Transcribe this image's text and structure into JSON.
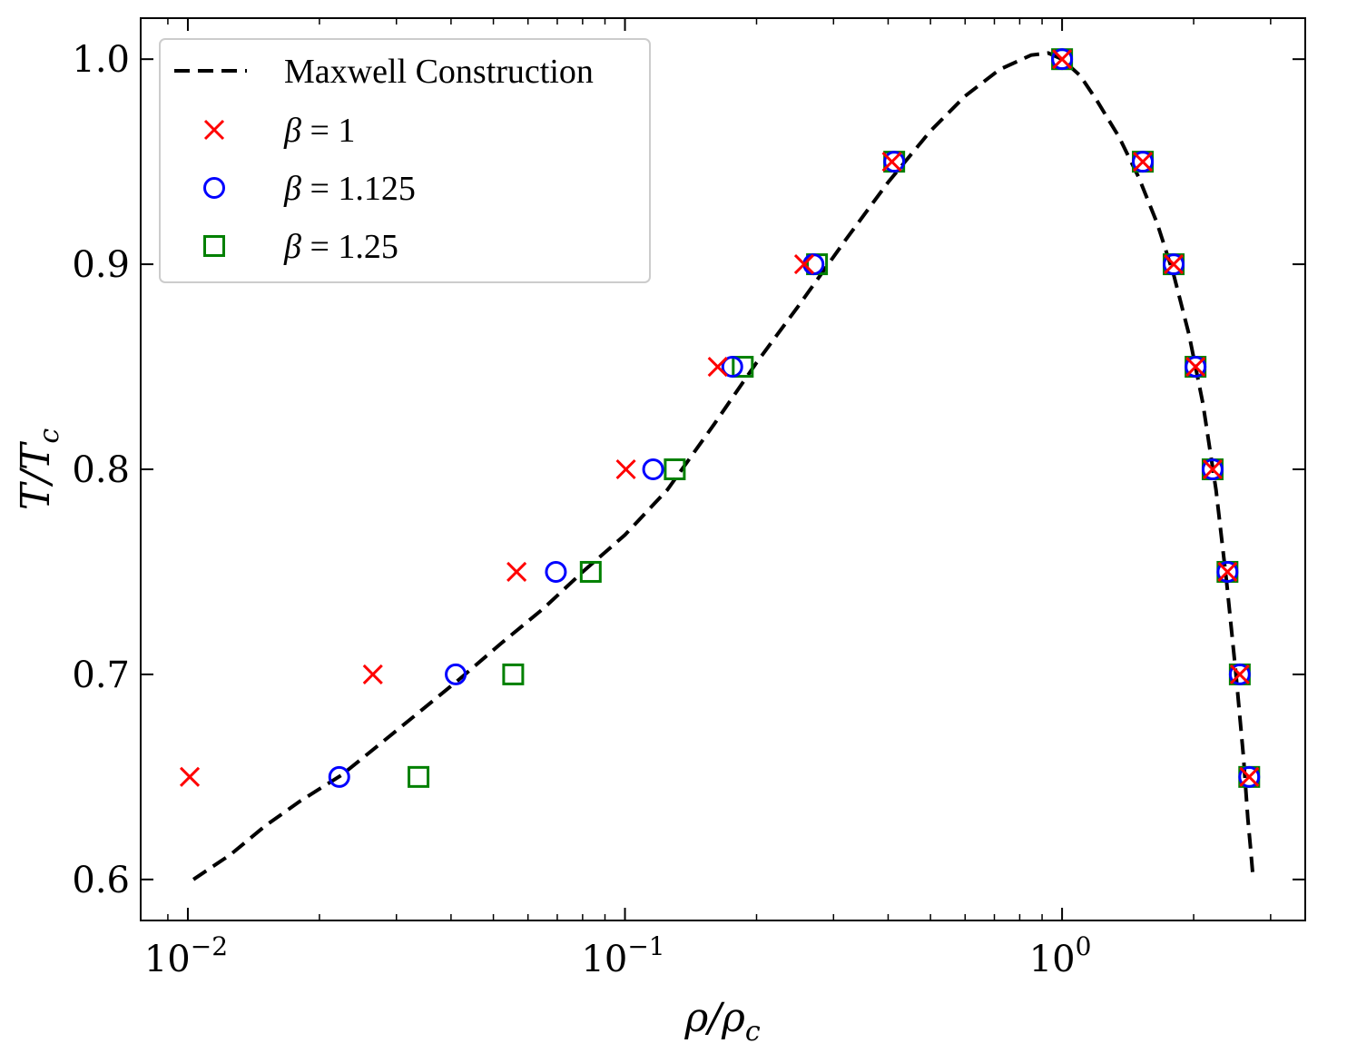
{
  "chart_data": {
    "type": "scatter",
    "x_scale": "log",
    "xlabel": "ρ/ρc",
    "ylabel": "T/Tc",
    "xlim": [
      0.0078,
      3.6
    ],
    "ylim": [
      0.58,
      1.02
    ],
    "x_ticks": [
      {
        "value": 0.01,
        "base": "10",
        "exp": "−2"
      },
      {
        "value": 0.1,
        "base": "10",
        "exp": "−1"
      },
      {
        "value": 1,
        "base": "10",
        "exp": "0"
      }
    ],
    "y_ticks": [
      {
        "value": 0.6,
        "label": "0.6"
      },
      {
        "value": 0.7,
        "label": "0.7"
      },
      {
        "value": 0.8,
        "label": "0.8"
      },
      {
        "value": 0.9,
        "label": "0.9"
      },
      {
        "value": 1.0,
        "label": "1.0"
      }
    ],
    "legend_position": "top-left",
    "line_series": {
      "name": "Maxwell Construction",
      "color": "#000000",
      "style": "dashed",
      "x": [
        0.0103,
        0.0125,
        0.015,
        0.018,
        0.0225,
        0.0275,
        0.034,
        0.042,
        0.052,
        0.065,
        0.08,
        0.1,
        0.125,
        0.16,
        0.2,
        0.25,
        0.32,
        0.4,
        0.5,
        0.6,
        0.72,
        0.85,
        0.93,
        1.0,
        1.1,
        1.2,
        1.35,
        1.5,
        1.65,
        1.8,
        1.95,
        2.1,
        2.25,
        2.38,
        2.5,
        2.6,
        2.66,
        2.7,
        2.73
      ],
      "y": [
        0.6,
        0.612,
        0.626,
        0.638,
        0.651,
        0.666,
        0.682,
        0.698,
        0.715,
        0.732,
        0.75,
        0.768,
        0.79,
        0.822,
        0.852,
        0.88,
        0.912,
        0.94,
        0.965,
        0.982,
        0.995,
        1.002,
        1.003,
        1.0,
        0.992,
        0.98,
        0.962,
        0.942,
        0.92,
        0.895,
        0.866,
        0.832,
        0.79,
        0.745,
        0.7,
        0.66,
        0.63,
        0.615,
        0.603
      ]
    },
    "series": [
      {
        "name": "β = 1",
        "marker": "x",
        "color": "#ff0000",
        "points": [
          [
            0.0101,
            0.65
          ],
          [
            0.0265,
            0.7
          ],
          [
            0.0565,
            0.75
          ],
          [
            0.1005,
            0.8
          ],
          [
            0.163,
            0.85
          ],
          [
            0.257,
            0.9
          ],
          [
            0.408,
            0.95
          ],
          [
            1.0,
            1.0
          ],
          [
            1.53,
            0.95
          ],
          [
            1.8,
            0.9
          ],
          [
            2.02,
            0.85
          ],
          [
            2.21,
            0.8
          ],
          [
            2.39,
            0.75
          ],
          [
            2.55,
            0.7
          ],
          [
            2.68,
            0.65
          ]
        ]
      },
      {
        "name": "β = 1.125",
        "marker": "o",
        "color": "#0000ff",
        "points": [
          [
            0.0222,
            0.65
          ],
          [
            0.041,
            0.7
          ],
          [
            0.0695,
            0.75
          ],
          [
            0.116,
            0.8
          ],
          [
            0.176,
            0.85
          ],
          [
            0.27,
            0.9
          ],
          [
            0.413,
            0.95
          ],
          [
            1.0,
            1.0
          ],
          [
            1.53,
            0.95
          ],
          [
            1.8,
            0.9
          ],
          [
            2.02,
            0.85
          ],
          [
            2.21,
            0.8
          ],
          [
            2.39,
            0.75
          ],
          [
            2.55,
            0.7
          ],
          [
            2.68,
            0.65
          ]
        ]
      },
      {
        "name": "β = 1.25",
        "marker": "s",
        "color": "#008000",
        "points": [
          [
            0.0337,
            0.65
          ],
          [
            0.0555,
            0.7
          ],
          [
            0.0835,
            0.75
          ],
          [
            0.13,
            0.8
          ],
          [
            0.186,
            0.85
          ],
          [
            0.275,
            0.9
          ],
          [
            0.413,
            0.95
          ],
          [
            1.0,
            1.0
          ],
          [
            1.53,
            0.95
          ],
          [
            1.8,
            0.9
          ],
          [
            2.02,
            0.85
          ],
          [
            2.21,
            0.8
          ],
          [
            2.39,
            0.75
          ],
          [
            2.55,
            0.7
          ],
          [
            2.68,
            0.65
          ]
        ]
      }
    ]
  }
}
